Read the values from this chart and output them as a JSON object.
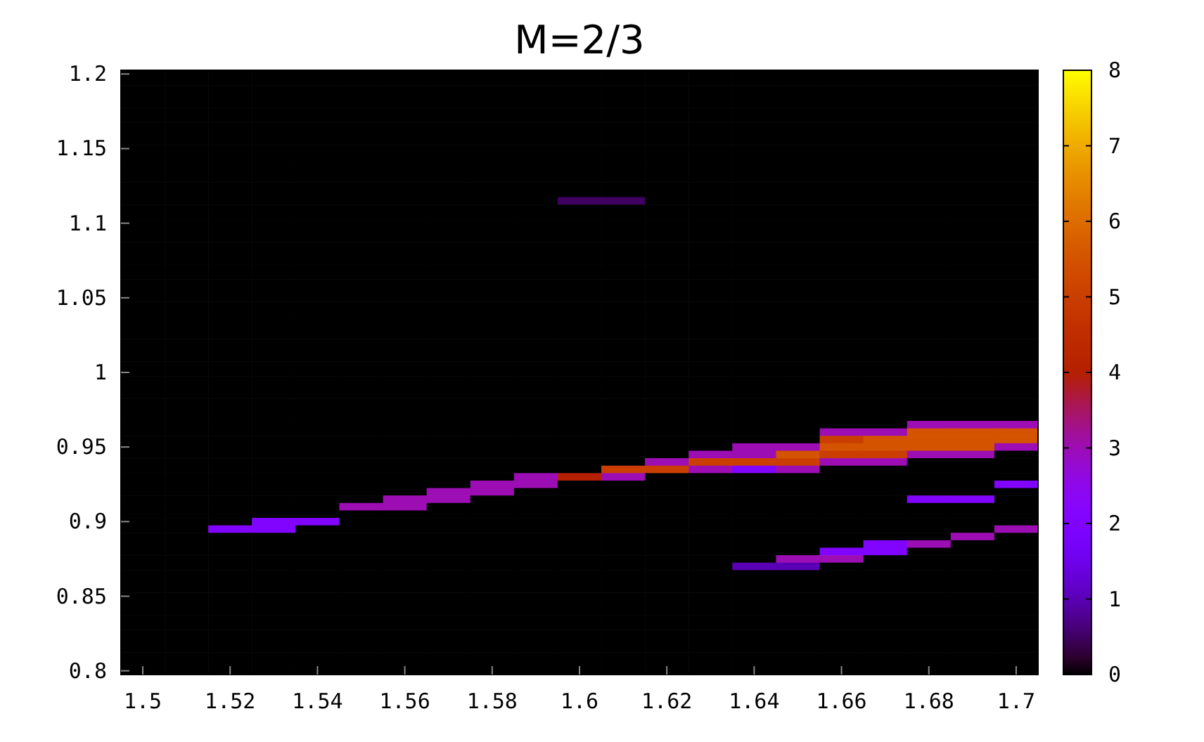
{
  "chart_data": {
    "type": "heatmap",
    "title": "M=2/3",
    "categories": [
      "1.5",
      null,
      "1.52",
      null,
      "1.54",
      null,
      "1.56",
      null,
      "1.58",
      null,
      "1.6",
      null,
      "1.62",
      null,
      "1.64",
      null,
      "1.66",
      null,
      "1.68",
      null,
      "1.7"
    ],
    "y_categories": [
      "1.2",
      null,
      null,
      null,
      null,
      null,
      null,
      null,
      null,
      null,
      "1.15",
      null,
      null,
      null,
      null,
      null,
      null,
      null,
      null,
      null,
      "1.1",
      null,
      null,
      null,
      null,
      null,
      null,
      null,
      null,
      null,
      "1.05",
      null,
      null,
      null,
      null,
      null,
      null,
      null,
      null,
      null,
      "1",
      null,
      null,
      null,
      null,
      null,
      null,
      null,
      null,
      null,
      "0.95",
      null,
      null,
      null,
      null,
      null,
      null,
      null,
      null,
      null,
      "0.9",
      null,
      null,
      null,
      null,
      null,
      null,
      null,
      null,
      null,
      "0.85",
      null,
      null,
      null,
      null,
      null,
      null,
      null,
      null,
      null,
      "0.8"
    ],
    "clim": [
      0,
      8
    ],
    "cticks": [
      0,
      1,
      2,
      3,
      4,
      5,
      6,
      7,
      8
    ],
    "cells": [
      [
        0,
        0,
        0,
        0,
        0,
        0,
        0,
        0,
        0,
        0,
        0,
        0,
        0,
        0,
        0,
        0,
        0,
        0,
        0,
        0,
        0
      ],
      [
        0,
        0,
        0,
        0,
        0,
        0,
        0,
        0,
        0,
        0,
        0,
        0,
        0,
        0,
        0,
        0,
        0,
        0,
        0,
        0,
        0
      ],
      [
        0,
        0,
        0,
        0,
        0,
        0,
        0,
        0,
        0,
        0,
        0,
        0,
        0,
        0,
        0,
        0,
        0,
        0,
        0,
        0,
        0
      ],
      [
        0,
        0,
        0,
        0,
        0,
        0,
        0,
        0,
        0,
        0,
        0,
        0,
        0,
        0,
        0,
        0,
        0,
        0,
        0,
        0,
        0
      ],
      [
        0,
        0,
        0,
        0,
        0,
        0,
        0,
        0,
        0,
        0,
        0,
        0,
        0,
        0,
        0,
        0,
        0,
        0,
        0,
        0,
        0
      ],
      [
        0,
        0,
        0,
        0,
        0,
        0,
        0,
        0,
        0,
        0,
        0,
        0,
        0,
        0,
        0,
        0,
        0,
        0,
        0,
        0,
        0
      ],
      [
        0,
        0,
        0,
        0,
        0,
        0,
        0,
        0,
        0,
        0,
        0,
        0,
        0,
        0,
        0,
        0,
        0,
        0,
        0,
        0,
        0
      ],
      [
        0,
        0,
        0,
        0,
        0,
        0,
        0,
        0,
        0,
        0,
        0,
        0,
        0,
        0,
        0,
        0,
        0,
        0,
        0,
        0,
        0
      ],
      [
        0,
        0,
        0,
        0,
        0,
        0,
        0,
        0,
        0,
        0,
        0,
        0,
        0,
        0,
        0,
        0,
        0,
        0,
        0,
        0,
        0
      ],
      [
        0,
        0,
        0,
        0,
        0,
        0,
        0,
        0,
        0,
        0,
        0,
        0,
        0,
        0,
        0,
        0,
        0,
        0,
        0,
        0,
        0
      ],
      [
        0,
        0,
        0,
        0,
        0,
        0,
        0,
        0,
        0,
        0,
        0,
        0,
        0,
        0,
        0,
        0,
        0,
        0,
        0,
        0,
        0
      ],
      [
        0,
        0,
        0,
        0,
        0,
        0,
        0,
        0,
        0,
        0,
        0,
        0,
        0,
        0,
        0,
        0,
        0,
        0,
        0,
        0,
        0
      ],
      [
        0,
        0,
        0,
        0,
        0,
        0,
        0,
        0,
        0,
        0,
        0,
        0,
        0,
        0,
        0,
        0,
        0,
        0,
        0,
        0,
        0
      ],
      [
        0,
        0,
        0,
        0,
        0,
        0,
        0,
        0,
        0,
        0,
        0,
        0,
        0,
        0,
        0,
        0,
        0,
        0,
        0,
        0,
        0
      ],
      [
        0,
        0,
        0,
        0,
        0,
        0,
        0,
        0,
        0,
        0,
        0,
        0,
        0,
        0,
        0,
        0,
        0,
        0,
        0,
        0,
        0
      ],
      [
        0,
        0,
        0,
        0,
        0,
        0,
        0,
        0,
        0,
        0,
        0,
        0,
        0,
        0,
        0,
        0,
        0,
        0,
        0,
        0,
        0
      ],
      [
        0,
        0,
        0,
        0,
        0,
        0,
        0,
        0,
        0,
        0,
        0,
        0,
        0,
        0,
        0,
        0,
        0,
        0,
        0,
        0,
        0
      ],
      [
        0,
        0,
        0,
        0,
        0,
        0,
        0,
        0,
        0,
        0,
        0.5,
        0.5,
        0,
        0,
        0,
        0,
        0,
        0,
        0,
        0,
        0
      ],
      [
        0,
        0,
        0,
        0,
        0,
        0,
        0,
        0,
        0,
        0,
        0,
        0,
        0,
        0,
        0,
        0,
        0,
        0,
        0,
        0,
        0
      ],
      [
        0,
        0,
        0,
        0,
        0,
        0,
        0,
        0,
        0,
        0,
        0,
        0,
        0,
        0,
        0,
        0,
        0,
        0,
        0,
        0,
        0
      ],
      [
        0,
        0,
        0,
        0,
        0,
        0,
        0,
        0,
        0,
        0,
        0,
        0,
        0,
        0,
        0,
        0,
        0,
        0,
        0,
        0,
        0
      ],
      [
        0,
        0,
        0,
        0,
        0,
        0,
        0,
        0,
        0,
        0,
        0,
        0,
        0,
        0,
        0,
        0,
        0,
        0,
        0,
        0,
        0
      ],
      [
        0,
        0,
        0,
        0,
        0,
        0,
        0,
        0,
        0,
        0,
        0,
        0,
        0,
        0,
        0,
        0,
        0,
        0,
        0,
        0,
        0
      ],
      [
        0,
        0,
        0,
        0,
        0,
        0,
        0,
        0,
        0,
        0,
        0,
        0,
        0,
        0,
        0,
        0,
        0,
        0,
        0,
        0,
        0
      ],
      [
        0,
        0,
        0,
        0,
        0,
        0,
        0,
        0,
        0,
        0,
        0,
        0,
        0,
        0,
        0,
        0,
        0,
        0,
        0,
        0,
        0
      ],
      [
        0,
        0,
        0,
        0,
        0,
        0,
        0,
        0,
        0,
        0,
        0,
        0,
        0,
        0,
        0,
        0,
        0,
        0,
        0,
        0,
        0
      ],
      [
        0,
        0,
        0,
        0,
        0,
        0,
        0,
        0,
        0,
        0,
        0,
        0,
        0,
        0,
        0,
        0,
        0,
        0,
        0,
        0,
        0
      ],
      [
        0,
        0,
        0,
        0,
        0,
        0,
        0,
        0,
        0,
        0,
        0,
        0,
        0,
        0,
        0,
        0,
        0,
        0,
        0,
        0,
        0
      ],
      [
        0,
        0,
        0,
        0,
        0,
        0,
        0,
        0,
        0,
        0,
        0,
        0,
        0,
        0,
        0,
        0,
        0,
        0,
        0,
        0,
        0
      ],
      [
        0,
        0,
        0,
        0,
        0,
        0,
        0,
        0,
        0,
        0,
        0,
        0,
        0,
        0,
        0,
        0,
        0,
        0,
        0,
        0,
        0
      ],
      [
        0,
        0,
        0,
        0,
        0,
        0,
        0,
        0,
        0,
        0,
        0,
        0,
        0,
        0,
        0,
        0,
        0,
        0,
        0,
        0,
        0
      ],
      [
        0,
        0,
        0,
        0,
        0,
        0,
        0,
        0,
        0,
        0,
        0,
        0,
        0,
        0,
        0,
        0,
        0,
        0,
        0,
        0,
        0
      ],
      [
        0,
        0,
        0,
        0,
        0,
        0,
        0,
        0,
        0,
        0,
        0,
        0,
        0,
        0,
        0,
        0,
        0,
        0,
        0,
        0,
        0
      ],
      [
        0,
        0,
        0,
        0,
        0,
        0,
        0,
        0,
        0,
        0,
        0,
        0,
        0,
        0,
        0,
        0,
        0,
        0,
        0,
        0,
        0
      ],
      [
        0,
        0,
        0,
        0,
        0,
        0,
        0,
        0,
        0,
        0,
        0,
        0,
        0,
        0,
        0,
        0,
        0,
        0,
        0,
        0,
        0
      ],
      [
        0,
        0,
        0,
        0,
        0,
        0,
        0,
        0,
        0,
        0,
        0,
        0,
        0,
        0,
        0,
        0,
        0,
        0,
        0,
        0,
        0
      ],
      [
        0,
        0,
        0,
        0,
        0,
        0,
        0,
        0,
        0,
        0,
        0,
        0,
        0,
        0,
        0,
        0,
        0,
        0,
        0,
        0,
        0
      ],
      [
        0,
        0,
        0,
        0,
        0,
        0,
        0,
        0,
        0,
        0,
        0,
        0,
        0,
        0,
        0,
        0,
        0,
        0,
        0,
        0,
        0
      ],
      [
        0,
        0,
        0,
        0,
        0,
        0,
        0,
        0,
        0,
        0,
        0,
        0,
        0,
        0,
        0,
        0,
        0,
        0,
        0,
        0,
        0
      ],
      [
        0,
        0,
        0,
        0,
        0,
        0,
        0,
        0,
        0,
        0,
        0,
        0,
        0,
        0,
        0,
        0,
        0,
        0,
        0,
        0,
        0
      ],
      [
        0,
        0,
        0,
        0,
        0,
        0,
        0,
        0,
        0,
        0,
        0,
        0,
        0,
        0,
        0,
        0,
        0,
        0,
        0,
        0,
        0
      ],
      [
        0,
        0,
        0,
        0,
        0,
        0,
        0,
        0,
        0,
        0,
        0,
        0,
        0,
        0,
        0,
        0,
        0,
        0,
        0,
        0,
        0
      ],
      [
        0,
        0,
        0,
        0,
        0,
        0,
        0,
        0,
        0,
        0,
        0,
        0,
        0,
        0,
        0,
        0,
        0,
        0,
        0,
        0,
        0
      ],
      [
        0,
        0,
        0,
        0,
        0,
        0,
        0,
        0,
        0,
        0,
        0,
        0,
        0,
        0,
        0,
        0,
        0,
        0,
        0,
        0,
        0
      ],
      [
        0,
        0,
        0,
        0,
        0,
        0,
        0,
        0,
        0,
        0,
        0,
        0,
        0,
        0,
        0,
        0,
        0,
        0,
        0,
        0,
        0
      ],
      [
        0,
        0,
        0,
        0,
        0,
        0,
        0,
        0,
        0,
        0,
        0,
        0,
        0,
        0,
        0,
        0,
        0,
        0,
        0,
        0,
        0
      ],
      [
        0,
        0,
        0,
        0,
        0,
        0,
        0,
        0,
        0,
        0,
        0,
        0,
        0,
        0,
        0,
        0,
        0,
        0,
        0,
        0,
        0
      ],
      [
        0,
        0,
        0,
        0,
        0,
        0,
        0,
        0,
        0,
        0,
        0,
        0,
        0,
        0,
        0,
        0,
        0,
        0,
        3,
        3,
        3
      ],
      [
        0,
        0,
        0,
        0,
        0,
        0,
        0,
        0,
        0,
        0,
        0,
        0,
        0,
        0,
        0,
        0,
        3,
        3,
        5.5,
        5.5,
        5.5
      ],
      [
        0,
        0,
        0,
        0,
        0,
        0,
        0,
        0,
        0,
        0,
        0,
        0,
        0,
        0,
        0,
        0,
        5,
        5.5,
        5.5,
        5.5,
        5.5
      ],
      [
        0,
        0,
        0,
        0,
        0,
        0,
        0,
        0,
        0,
        0,
        0,
        0,
        0,
        0,
        3,
        3,
        5.5,
        5.5,
        5.5,
        5.5,
        3
      ],
      [
        0,
        0,
        0,
        0,
        0,
        0,
        0,
        0,
        0,
        0,
        0,
        0,
        0,
        3,
        3,
        5.5,
        5,
        5,
        3,
        3,
        0
      ],
      [
        0,
        0,
        0,
        0,
        0,
        0,
        0,
        0,
        0,
        0,
        0,
        0,
        3,
        5,
        5,
        5,
        3,
        3,
        0,
        0,
        0
      ],
      [
        0,
        0,
        0,
        0,
        0,
        0,
        0,
        0,
        0,
        0,
        0,
        5,
        5,
        3,
        2,
        3,
        0,
        0,
        0,
        0,
        0
      ],
      [
        0,
        0,
        0,
        0,
        0,
        0,
        0,
        0,
        0,
        3,
        4,
        3,
        0,
        0,
        0,
        0,
        0,
        0,
        0,
        0,
        0
      ],
      [
        0,
        0,
        0,
        0,
        0,
        0,
        0,
        0,
        3,
        3,
        0,
        0,
        0,
        0,
        0,
        0,
        0,
        0,
        0,
        0,
        2
      ],
      [
        0,
        0,
        0,
        0,
        0,
        0,
        0,
        3,
        3,
        0,
        0,
        0,
        0,
        0,
        0,
        0,
        0,
        0,
        0,
        0,
        0
      ],
      [
        0,
        0,
        0,
        0,
        0,
        0,
        3,
        3,
        0,
        0,
        0,
        0,
        0,
        0,
        0,
        0,
        0,
        0,
        2,
        2,
        0
      ],
      [
        0,
        0,
        0,
        0,
        0,
        3,
        3,
        0,
        0,
        0,
        0,
        0,
        0,
        0,
        0,
        0,
        0,
        0,
        0,
        0,
        0
      ],
      [
        0,
        0,
        0,
        0,
        0,
        0,
        0,
        0,
        0,
        0,
        0,
        0,
        0,
        0,
        0,
        0,
        0,
        0,
        0,
        0,
        0
      ],
      [
        0,
        0,
        0,
        2,
        2,
        0,
        0,
        0,
        0,
        0,
        0,
        0,
        0,
        0,
        0,
        0,
        0,
        0,
        0,
        0,
        0
      ],
      [
        0,
        0,
        2,
        2,
        0,
        0,
        0,
        0,
        0,
        0,
        0,
        0,
        0,
        0,
        0,
        0,
        0,
        0,
        0,
        0,
        3
      ],
      [
        0,
        0,
        0,
        0,
        0,
        0,
        0,
        0,
        0,
        0,
        0,
        0,
        0,
        0,
        0,
        0,
        0,
        0,
        0,
        3,
        0
      ],
      [
        0,
        0,
        0,
        0,
        0,
        0,
        0,
        0,
        0,
        0,
        0,
        0,
        0,
        0,
        0,
        0,
        0,
        2,
        3,
        0,
        0
      ],
      [
        0,
        0,
        0,
        0,
        0,
        0,
        0,
        0,
        0,
        0,
        0,
        0,
        0,
        0,
        0,
        0,
        2,
        2,
        0,
        0,
        0
      ],
      [
        0,
        0,
        0,
        0,
        0,
        0,
        0,
        0,
        0,
        0,
        0,
        0,
        0,
        0,
        0,
        3,
        3,
        0,
        0,
        0,
        0
      ],
      [
        0,
        0,
        0,
        0,
        0,
        0,
        0,
        0,
        0,
        0,
        0,
        0,
        0,
        0,
        1,
        1,
        0,
        0,
        0,
        0,
        0
      ],
      [
        0,
        0,
        0,
        0,
        0,
        0,
        0,
        0,
        0,
        0,
        0,
        0,
        0,
        0,
        0,
        0,
        0,
        0,
        0,
        0,
        0
      ],
      [
        0,
        0,
        0,
        0,
        0,
        0,
        0,
        0,
        0,
        0,
        0,
        0,
        0,
        0,
        0,
        0,
        0,
        0,
        0,
        0,
        0
      ],
      [
        0,
        0,
        0,
        0,
        0,
        0,
        0,
        0,
        0,
        0,
        0,
        0,
        0,
        0,
        0,
        0,
        0,
        0,
        0,
        0,
        0
      ],
      [
        0,
        0,
        0,
        0,
        0,
        0,
        0,
        0,
        0,
        0,
        0,
        0,
        0,
        0,
        0,
        0,
        0,
        0,
        0,
        0,
        0
      ],
      [
        0,
        0,
        0,
        0,
        0,
        0,
        0,
        0,
        0,
        0,
        0,
        0,
        0,
        0,
        0,
        0,
        0,
        0,
        0,
        0,
        0
      ],
      [
        0,
        0,
        0,
        0,
        0,
        0,
        0,
        0,
        0,
        0,
        0,
        0,
        0,
        0,
        0,
        0,
        0,
        0,
        0,
        0,
        0
      ],
      [
        0,
        0,
        0,
        0,
        0,
        0,
        0,
        0,
        0,
        0,
        0,
        0,
        0,
        0,
        0,
        0,
        0,
        0,
        0,
        0,
        0
      ],
      [
        0,
        0,
        0,
        0,
        0,
        0,
        0,
        0,
        0,
        0,
        0,
        0,
        0,
        0,
        0,
        0,
        0,
        0,
        0,
        0,
        0
      ],
      [
        0,
        0,
        0,
        0,
        0,
        0,
        0,
        0,
        0,
        0,
        0,
        0,
        0,
        0,
        0,
        0,
        0,
        0,
        0,
        0,
        0
      ],
      [
        0,
        0,
        0,
        0,
        0,
        0,
        0,
        0,
        0,
        0,
        0,
        0,
        0,
        0,
        0,
        0,
        0,
        0,
        0,
        0,
        0
      ],
      [
        0,
        0,
        0,
        0,
        0,
        0,
        0,
        0,
        0,
        0,
        0,
        0,
        0,
        0,
        0,
        0,
        0,
        0,
        0,
        0,
        0
      ],
      [
        0,
        0,
        0,
        0,
        0,
        0,
        0,
        0,
        0,
        0,
        0,
        0,
        0,
        0,
        0,
        0,
        0,
        0,
        0,
        0,
        0
      ],
      [
        0,
        0,
        0,
        0,
        0,
        0,
        0,
        0,
        0,
        0,
        0,
        0,
        0,
        0,
        0,
        0,
        0,
        0,
        0,
        0,
        0
      ],
      [
        0,
        0,
        0,
        0,
        0,
        0,
        0,
        0,
        0,
        0,
        0,
        0,
        0,
        0,
        0,
        0,
        0,
        0,
        0,
        0,
        0
      ]
    ]
  }
}
